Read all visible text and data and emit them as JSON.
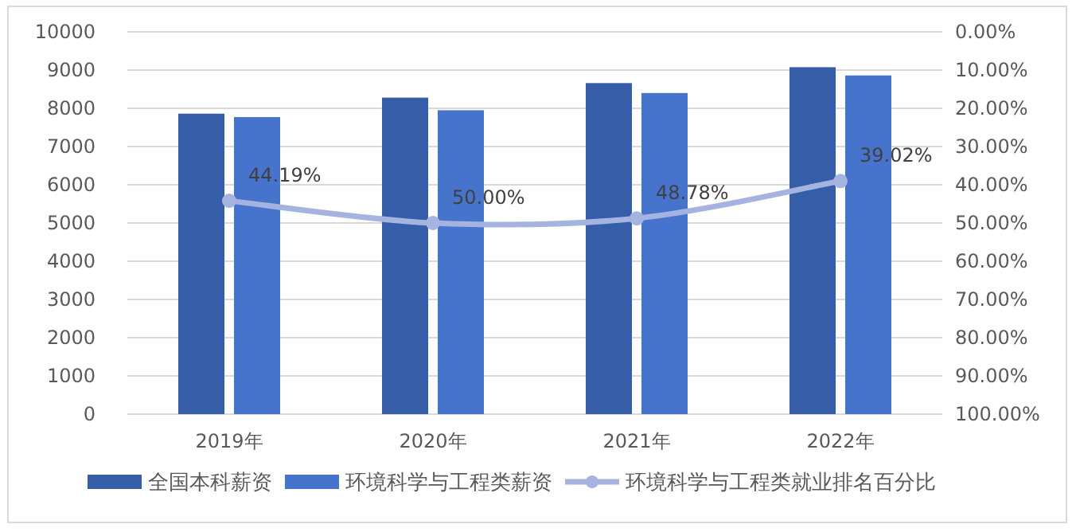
{
  "chart_data": {
    "type": "bar",
    "categories": [
      "2019年",
      "2020年",
      "2021年",
      "2022年"
    ],
    "series": [
      {
        "name": "全国本科薪资",
        "color": "#365ea8",
        "values": [
          7860,
          8280,
          8660,
          9075
        ]
      },
      {
        "name": "环境科学与工程类薪资",
        "color": "#4674cc",
        "values": [
          7770,
          7950,
          8400,
          8860
        ]
      },
      {
        "name": "环境科学与工程类就业排名百分比",
        "type": "line",
        "axis": "y2",
        "color": "#a4b3e0",
        "marker": "circle",
        "values": [
          44.19,
          50.0,
          48.78,
          39.02
        ],
        "value_labels": [
          "44.19%",
          "50.00%",
          "48.78%",
          "39.02%"
        ]
      }
    ],
    "ylim": [
      0,
      10000
    ],
    "yticks": [
      0,
      1000,
      2000,
      3000,
      4000,
      5000,
      6000,
      7000,
      8000,
      9000,
      10000
    ],
    "y2lim": [
      100,
      0
    ],
    "y2ticks": [
      {
        "value": 0,
        "label": "0.00%"
      },
      {
        "value": 10,
        "label": "10.00%"
      },
      {
        "value": 20,
        "label": "20.00%"
      },
      {
        "value": 30,
        "label": "30.00%"
      },
      {
        "value": 40,
        "label": "40.00%"
      },
      {
        "value": 50,
        "label": "50.00%"
      },
      {
        "value": 60,
        "label": "60.00%"
      },
      {
        "value": 70,
        "label": "70.00%"
      },
      {
        "value": 80,
        "label": "80.00%"
      },
      {
        "value": 90,
        "label": "90.00%"
      },
      {
        "value": 100,
        "label": "100.00%"
      }
    ],
    "grid": "y",
    "legend": "bottom"
  }
}
